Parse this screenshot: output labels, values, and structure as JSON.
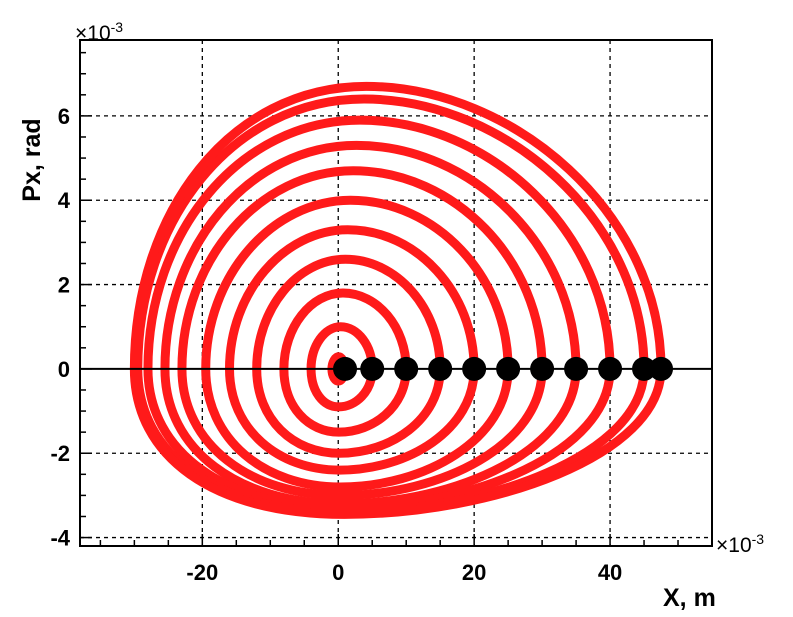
{
  "chart_data": {
    "type": "scatter",
    "title": "",
    "xlabel": "X, m",
    "ylabel": "Px, rad",
    "x_exponent": "×10",
    "x_exponent_power": "-3",
    "y_exponent": "×10",
    "y_exponent_power": "-3",
    "xlim": [
      -38,
      55
    ],
    "ylim": [
      -4.2,
      7.8
    ],
    "x_ticks": [
      -20,
      0,
      20,
      40
    ],
    "x_tick_labels": [
      "-20",
      "0",
      "20",
      "40"
    ],
    "y_ticks": [
      -4,
      -2,
      0,
      2,
      4,
      6
    ],
    "y_tick_labels": [
      "-4",
      "-2",
      "0",
      "2",
      "4",
      "6"
    ],
    "grid": true,
    "zero_line": true,
    "colors": {
      "orbit": "#ff1a1a",
      "start_point": "#000000"
    },
    "series": [
      {
        "marker": "square",
        "starting_x": [
          1,
          5,
          10,
          15,
          20,
          25,
          30,
          35,
          40,
          45,
          47.5
        ],
        "orbits": [
          {
            "x_right": 1,
            "x_left": -1,
            "y_top": 0.3,
            "y_bottom": -0.3
          },
          {
            "x_right": 5,
            "x_left": -4,
            "y_top": 1.0,
            "y_bottom": -0.9
          },
          {
            "x_right": 10,
            "x_left": -8,
            "y_top": 1.8,
            "y_bottom": -1.5
          },
          {
            "x_right": 15,
            "x_left": -12,
            "y_top": 2.6,
            "y_bottom": -2.0
          },
          {
            "x_right": 20,
            "x_left": -16,
            "y_top": 3.3,
            "y_bottom": -2.4
          },
          {
            "x_right": 25,
            "x_left": -19.5,
            "y_top": 4.0,
            "y_bottom": -2.8
          },
          {
            "x_right": 30,
            "x_left": -23,
            "y_top": 4.7,
            "y_bottom": -3.0
          },
          {
            "x_right": 35,
            "x_left": -25.5,
            "y_top": 5.3,
            "y_bottom": -3.2
          },
          {
            "x_right": 40,
            "x_left": -28,
            "y_top": 5.9,
            "y_bottom": -3.3
          },
          {
            "x_right": 45,
            "x_left": -29.5,
            "y_top": 6.4,
            "y_bottom": -3.4
          },
          {
            "x_right": 47.5,
            "x_left": -30,
            "y_top": 6.7,
            "y_bottom": -3.45
          }
        ]
      }
    ]
  }
}
